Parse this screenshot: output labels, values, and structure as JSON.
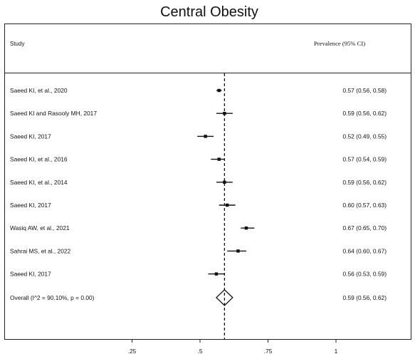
{
  "chart_data": {
    "type": "forest",
    "title": "Central Obesity",
    "header": {
      "study": "Study",
      "estimate": "Prevalence (95% CI)"
    },
    "xlim": [
      0.0,
      1.0
    ],
    "xticks": [
      {
        "value": 0.25,
        "label": ".25"
      },
      {
        "value": 0.5,
        "label": ".5"
      },
      {
        "value": 0.75,
        "label": ".75"
      },
      {
        "value": 1.0,
        "label": "1"
      }
    ],
    "reference_line": 0.59,
    "studies": [
      {
        "label": "Saeed KI, et al., 2020",
        "estimate": 0.57,
        "lower": 0.56,
        "upper": 0.58,
        "ci_text": "0.57 (0.56, 0.58)"
      },
      {
        "label": "Saeed KI and Rasooly MH, 2017",
        "estimate": 0.59,
        "lower": 0.56,
        "upper": 0.62,
        "ci_text": "0.59 (0.56, 0.62)"
      },
      {
        "label": "Saeed KI, 2017",
        "estimate": 0.52,
        "lower": 0.49,
        "upper": 0.55,
        "ci_text": "0.52 (0.49, 0.55)"
      },
      {
        "label": "Saeed KI, et al., 2016",
        "estimate": 0.57,
        "lower": 0.54,
        "upper": 0.59,
        "ci_text": "0.57 (0.54, 0.59)"
      },
      {
        "label": "Saeed KI, et al., 2014",
        "estimate": 0.59,
        "lower": 0.56,
        "upper": 0.62,
        "ci_text": "0.59 (0.56, 0.62)"
      },
      {
        "label": "Saeed KI, 2017",
        "estimate": 0.6,
        "lower": 0.57,
        "upper": 0.63,
        "ci_text": "0.60 (0.57, 0.63)"
      },
      {
        "label": "Wasiq AW, et al., 2021",
        "estimate": 0.67,
        "lower": 0.65,
        "upper": 0.7,
        "ci_text": "0.67 (0.65, 0.70)"
      },
      {
        "label": "Sahrai MS, et al., 2022",
        "estimate": 0.64,
        "lower": 0.6,
        "upper": 0.67,
        "ci_text": "0.64 (0.60, 0.67)"
      },
      {
        "label": "Saeed KI, 2017",
        "estimate": 0.56,
        "lower": 0.53,
        "upper": 0.59,
        "ci_text": "0.56 (0.53, 0.59)"
      }
    ],
    "overall": {
      "label": "Overall  (I^2 = 90.10%, p = 0.00)",
      "estimate": 0.59,
      "lower": 0.56,
      "upper": 0.62,
      "ci_text": "0.59 (0.56, 0.62)"
    }
  }
}
